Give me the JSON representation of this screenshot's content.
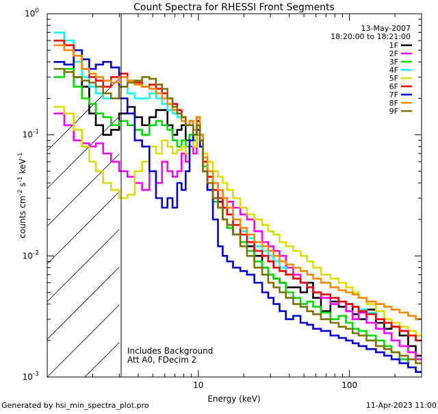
{
  "chart_data": {
    "type": "line",
    "step": true,
    "title": "Count Spectra for RHESSI Front Segments",
    "xlabel": "Energy (keV)",
    "ylabel": "counts cm-2 s-1 keV-1",
    "xscale": "log",
    "yscale": "log",
    "xlim": [
      1.0,
      300.0
    ],
    "ylim": [
      0.001,
      1.0
    ],
    "x_ticks": [
      {
        "value": 10,
        "label": "10"
      },
      {
        "value": 100,
        "label": "100"
      }
    ],
    "y_ticks": [
      {
        "value": 1.0,
        "label": "10",
        "exp": "0"
      },
      {
        "value": 0.1,
        "label": "10",
        "exp": "-1"
      },
      {
        "value": 0.01,
        "label": "10",
        "exp": "-2"
      },
      {
        "value": 0.001,
        "label": "10",
        "exp": "-3"
      }
    ],
    "hatched_region_upper_keV": 3.0,
    "date": "13-May-2007",
    "time_range": "18:20:00 to 18:21:00",
    "legend_position": "top-right",
    "annotation_lines": [
      "Includes Background",
      "Att A0, FDecim 2"
    ],
    "series": [
      {
        "name": "1F",
        "color": "#000000",
        "x": [
          1.2,
          1.4,
          1.6,
          1.8,
          2.0,
          2.2,
          2.5,
          2.8,
          3.2,
          3.6,
          4.0,
          4.5,
          5.0,
          5.5,
          6.0,
          6.5,
          7.0,
          7.5,
          8.0,
          8.5,
          9.0,
          9.5,
          10.0,
          10.5,
          11.0,
          12.0,
          13.0,
          14.0,
          15.0,
          16.0,
          18.0,
          20.0,
          22.0,
          25.0,
          28.0,
          30.0,
          33.0,
          36.0,
          40.0,
          45.0,
          50.0,
          55.0,
          60.0,
          70.0,
          80.0,
          90.0,
          100.0,
          110.0,
          120.0,
          140.0,
          160.0,
          180.0,
          200.0,
          230.0,
          260.0,
          290.0
        ],
        "y": [
          0.4,
          0.38,
          0.3,
          0.25,
          0.15,
          0.12,
          0.1,
          0.11,
          0.15,
          0.17,
          0.14,
          0.12,
          0.14,
          0.16,
          0.16,
          0.12,
          0.1,
          0.11,
          0.12,
          0.09,
          0.1,
          0.08,
          0.13,
          0.08,
          0.05,
          0.035,
          0.03,
          0.028,
          0.02,
          0.018,
          0.015,
          0.013,
          0.012,
          0.01,
          0.008,
          0.007,
          0.0065,
          0.006,
          0.0055,
          0.0055,
          0.005,
          0.006,
          0.0045,
          0.0035,
          0.0042,
          0.0038,
          0.004,
          0.0033,
          0.003,
          0.0036,
          0.0028,
          0.0025,
          0.0026,
          0.0022,
          0.0018,
          0.0015
        ]
      },
      {
        "name": "2F",
        "color": "#ff00ff",
        "x": [
          1.2,
          1.4,
          1.6,
          1.8,
          2.0,
          2.2,
          2.5,
          2.8,
          3.2,
          3.6,
          4.0,
          4.5,
          5.0,
          5.5,
          6.0,
          6.5,
          7.0,
          7.5,
          8.0,
          8.5,
          9.0,
          9.5,
          10.0,
          10.5,
          11.0,
          12.0,
          13.0,
          14.0,
          15.0,
          16.0,
          18.0,
          20.0,
          22.0,
          25.0,
          28.0,
          30.0,
          33.0,
          36.0,
          40.0,
          45.0,
          50.0,
          55.0,
          60.0,
          70.0,
          80.0,
          90.0,
          100.0,
          110.0,
          120.0,
          140.0,
          160.0,
          180.0,
          200.0,
          230.0,
          260.0,
          290.0
        ],
        "y": [
          0.15,
          0.12,
          0.09,
          0.085,
          0.08,
          0.085,
          0.07,
          0.06,
          0.05,
          0.045,
          0.04,
          0.035,
          0.05,
          0.04,
          0.06,
          0.05,
          0.045,
          0.05,
          0.07,
          0.06,
          0.08,
          0.07,
          0.1,
          0.09,
          0.05,
          0.045,
          0.04,
          0.035,
          0.03,
          0.028,
          0.025,
          0.022,
          0.02,
          0.016,
          0.013,
          0.012,
          0.011,
          0.01,
          0.008,
          0.007,
          0.006,
          0.0055,
          0.005,
          0.0045,
          0.004,
          0.0042,
          0.0035,
          0.003,
          0.0034,
          0.0028,
          0.0025,
          0.0023,
          0.002,
          0.0018,
          0.0016,
          0.0014
        ]
      },
      {
        "name": "3F",
        "color": "#00dd00",
        "x": [
          1.2,
          1.4,
          1.6,
          1.8,
          2.0,
          2.2,
          2.5,
          2.8,
          3.2,
          3.6,
          4.0,
          4.5,
          5.0,
          5.5,
          6.0,
          6.5,
          7.0,
          7.5,
          8.0,
          8.5,
          9.0,
          9.5,
          10.0,
          10.5,
          11.0,
          12.0,
          13.0,
          14.0,
          15.0,
          16.0,
          18.0,
          20.0,
          22.0,
          25.0,
          28.0,
          30.0,
          33.0,
          36.0,
          40.0,
          45.0,
          50.0,
          55.0,
          60.0,
          70.0,
          80.0,
          90.0,
          100.0,
          110.0,
          120.0,
          140.0,
          160.0,
          180.0,
          200.0,
          230.0,
          260.0,
          290.0
        ],
        "y": [
          0.3,
          0.35,
          0.25,
          0.2,
          0.18,
          0.15,
          0.14,
          0.12,
          0.13,
          0.12,
          0.11,
          0.1,
          0.12,
          0.13,
          0.12,
          0.11,
          0.09,
          0.08,
          0.09,
          0.08,
          0.1,
          0.09,
          0.1,
          0.08,
          0.055,
          0.035,
          0.028,
          0.025,
          0.02,
          0.017,
          0.015,
          0.013,
          0.011,
          0.009,
          0.008,
          0.007,
          0.0065,
          0.006,
          0.005,
          0.0045,
          0.004,
          0.0042,
          0.0038,
          0.0034,
          0.003,
          0.0032,
          0.0028,
          0.0025,
          0.0024,
          0.0022,
          0.002,
          0.0018,
          0.0016,
          0.0014,
          0.0012,
          0.0011
        ]
      },
      {
        "name": "4F",
        "color": "#00ffff",
        "x": [
          1.2,
          1.4,
          1.6,
          1.8,
          2.0,
          2.2,
          2.5,
          2.8,
          3.2,
          3.6,
          4.0,
          4.5,
          5.0,
          5.5,
          6.0,
          6.5,
          7.0,
          7.5,
          8.0,
          8.5,
          9.0,
          9.5,
          10.0,
          10.5,
          11.0,
          12.0,
          13.0,
          14.0,
          15.0,
          16.0,
          18.0,
          20.0,
          22.0,
          25.0,
          28.0,
          30.0,
          33.0,
          36.0,
          40.0,
          45.0,
          50.0,
          55.0,
          60.0,
          70.0,
          80.0,
          90.0,
          100.0,
          110.0,
          120.0,
          140.0,
          160.0,
          180.0,
          200.0,
          230.0,
          260.0,
          290.0
        ],
        "y": [
          0.7,
          0.6,
          0.4,
          0.3,
          0.25,
          0.22,
          0.2,
          0.2,
          0.25,
          0.22,
          0.2,
          0.2,
          0.22,
          0.2,
          0.18,
          0.16,
          0.15,
          0.14,
          0.13,
          0.12,
          0.12,
          0.1,
          0.12,
          0.1,
          0.06,
          0.045,
          0.035,
          0.03,
          0.025,
          0.022,
          0.018,
          0.016,
          0.014,
          0.012,
          0.011,
          0.01,
          0.009,
          0.008,
          0.007,
          0.0065,
          0.006,
          0.0055,
          0.005,
          0.0048,
          0.0045,
          0.0042,
          0.004,
          0.0038,
          0.0036,
          0.0034,
          0.003,
          0.0028,
          0.0026,
          0.0024,
          0.0022,
          0.002
        ]
      },
      {
        "name": "5F",
        "color": "#dddd00",
        "x": [
          1.2,
          1.4,
          1.6,
          1.8,
          2.0,
          2.2,
          2.5,
          2.8,
          3.2,
          3.6,
          4.0,
          4.5,
          5.0,
          5.5,
          6.0,
          6.5,
          7.0,
          7.5,
          8.0,
          8.5,
          9.0,
          9.5,
          10.0,
          10.5,
          11.0,
          12.0,
          13.0,
          14.0,
          15.0,
          16.0,
          18.0,
          20.0,
          22.0,
          25.0,
          28.0,
          30.0,
          33.0,
          36.0,
          40.0,
          45.0,
          50.0,
          55.0,
          60.0,
          70.0,
          80.0,
          90.0,
          100.0,
          110.0,
          120.0,
          140.0,
          160.0,
          180.0,
          200.0,
          230.0,
          260.0,
          290.0
        ],
        "y": [
          0.17,
          0.15,
          0.11,
          0.08,
          0.06,
          0.05,
          0.04,
          0.035,
          0.03,
          0.032,
          0.05,
          0.06,
          0.08,
          0.07,
          0.09,
          0.08,
          0.07,
          0.075,
          0.08,
          0.07,
          0.09,
          0.08,
          0.12,
          0.09,
          0.07,
          0.06,
          0.05,
          0.045,
          0.04,
          0.035,
          0.03,
          0.025,
          0.022,
          0.02,
          0.018,
          0.016,
          0.015,
          0.013,
          0.012,
          0.011,
          0.01,
          0.009,
          0.008,
          0.007,
          0.0065,
          0.006,
          0.0055,
          0.005,
          0.0045,
          0.004,
          0.0035,
          0.003,
          0.0028,
          0.0026,
          0.0024,
          0.0022
        ]
      },
      {
        "name": "6F",
        "color": "#ff0000",
        "x": [
          1.2,
          1.4,
          1.6,
          1.8,
          2.0,
          2.2,
          2.5,
          2.8,
          3.2,
          3.6,
          4.0,
          4.5,
          5.0,
          5.5,
          6.0,
          6.5,
          7.0,
          7.5,
          8.0,
          8.5,
          9.0,
          9.5,
          10.0,
          10.5,
          11.0,
          12.0,
          13.0,
          14.0,
          15.0,
          16.0,
          18.0,
          20.0,
          22.0,
          25.0,
          28.0,
          30.0,
          33.0,
          36.0,
          40.0,
          45.0,
          50.0,
          55.0,
          60.0,
          70.0,
          80.0,
          90.0,
          100.0,
          110.0,
          120.0,
          140.0,
          160.0,
          180.0,
          200.0,
          230.0,
          260.0,
          290.0
        ],
        "y": [
          0.6,
          0.55,
          0.45,
          0.35,
          0.3,
          0.28,
          0.25,
          0.3,
          0.32,
          0.28,
          0.27,
          0.25,
          0.26,
          0.24,
          0.22,
          0.2,
          0.18,
          0.16,
          0.14,
          0.12,
          0.13,
          0.11,
          0.14,
          0.1,
          0.06,
          0.045,
          0.035,
          0.03,
          0.025,
          0.022,
          0.018,
          0.015,
          0.013,
          0.011,
          0.01,
          0.009,
          0.008,
          0.0075,
          0.007,
          0.0065,
          0.006,
          0.0055,
          0.005,
          0.0048,
          0.0045,
          0.0042,
          0.004,
          0.0038,
          0.0035,
          0.0033,
          0.003,
          0.0028,
          0.0026,
          0.0024,
          0.0022,
          0.002
        ]
      },
      {
        "name": "7F",
        "color": "#0000dd",
        "x": [
          1.2,
          1.4,
          1.6,
          1.8,
          2.0,
          2.2,
          2.5,
          2.8,
          3.2,
          3.6,
          4.0,
          4.5,
          5.0,
          5.5,
          6.0,
          6.5,
          7.0,
          7.5,
          8.0,
          8.5,
          9.0,
          9.5,
          10.0,
          10.5,
          11.0,
          12.0,
          13.0,
          14.0,
          15.0,
          16.0,
          18.0,
          20.0,
          22.0,
          25.0,
          28.0,
          30.0,
          33.0,
          36.0,
          40.0,
          45.0,
          50.0,
          55.0,
          60.0,
          70.0,
          80.0,
          90.0,
          100.0,
          110.0,
          120.0,
          140.0,
          160.0,
          180.0,
          200.0,
          230.0,
          260.0,
          290.0
        ],
        "y": [
          0.4,
          0.38,
          0.5,
          0.42,
          0.35,
          0.38,
          0.4,
          0.36,
          0.2,
          0.15,
          0.09,
          0.08,
          0.05,
          0.03,
          0.025,
          0.03,
          0.025,
          0.04,
          0.035,
          0.05,
          0.09,
          0.1,
          0.11,
          0.08,
          0.05,
          0.035,
          0.02,
          0.012,
          0.01,
          0.009,
          0.008,
          0.0075,
          0.007,
          0.006,
          0.005,
          0.0045,
          0.004,
          0.0035,
          0.003,
          0.0032,
          0.0028,
          0.0027,
          0.0025,
          0.0024,
          0.0022,
          0.0021,
          0.002,
          0.0019,
          0.0018,
          0.0017,
          0.0016,
          0.0015,
          0.0014,
          0.0013,
          0.0012,
          0.0011
        ]
      },
      {
        "name": "8F",
        "color": "#ff8800",
        "x": [
          1.2,
          1.4,
          1.6,
          1.8,
          2.0,
          2.2,
          2.5,
          2.8,
          3.2,
          3.6,
          4.0,
          4.5,
          5.0,
          5.5,
          6.0,
          6.5,
          7.0,
          7.5,
          8.0,
          8.5,
          9.0,
          9.5,
          10.0,
          10.5,
          11.0,
          12.0,
          13.0,
          14.0,
          15.0,
          16.0,
          18.0,
          20.0,
          22.0,
          25.0,
          28.0,
          30.0,
          33.0,
          36.0,
          40.0,
          45.0,
          50.0,
          55.0,
          60.0,
          70.0,
          80.0,
          90.0,
          100.0,
          110.0,
          120.0,
          140.0,
          160.0,
          180.0,
          200.0,
          230.0,
          260.0,
          290.0
        ],
        "y": [
          0.55,
          0.5,
          0.45,
          0.35,
          0.32,
          0.3,
          0.28,
          0.27,
          0.3,
          0.28,
          0.26,
          0.25,
          0.24,
          0.22,
          0.2,
          0.18,
          0.16,
          0.15,
          0.13,
          0.12,
          0.13,
          0.11,
          0.14,
          0.1,
          0.065,
          0.05,
          0.04,
          0.035,
          0.03,
          0.025,
          0.02,
          0.017,
          0.015,
          0.013,
          0.012,
          0.011,
          0.01,
          0.009,
          0.0085,
          0.008,
          0.0075,
          0.007,
          0.0065,
          0.006,
          0.0055,
          0.0052,
          0.005,
          0.0048,
          0.0045,
          0.0042,
          0.004,
          0.0038,
          0.0036,
          0.0034,
          0.0032,
          0.003
        ]
      },
      {
        "name": "9F",
        "color": "#807000",
        "x": [
          1.2,
          1.4,
          1.6,
          1.8,
          2.0,
          2.2,
          2.5,
          2.8,
          3.2,
          3.6,
          4.0,
          4.5,
          5.0,
          5.5,
          6.0,
          6.5,
          7.0,
          7.5,
          8.0,
          8.5,
          9.0,
          9.5,
          10.0,
          10.5,
          11.0,
          12.0,
          13.0,
          14.0,
          15.0,
          16.0,
          18.0,
          20.0,
          22.0,
          25.0,
          28.0,
          30.0,
          33.0,
          36.0,
          40.0,
          45.0,
          50.0,
          55.0,
          60.0,
          70.0,
          80.0,
          90.0,
          100.0,
          110.0,
          120.0,
          140.0,
          160.0,
          180.0,
          200.0,
          230.0,
          260.0,
          290.0
        ],
        "y": [
          0.35,
          0.33,
          0.3,
          0.28,
          0.27,
          0.25,
          0.22,
          0.2,
          0.25,
          0.27,
          0.28,
          0.3,
          0.29,
          0.26,
          0.24,
          0.2,
          0.17,
          0.15,
          0.14,
          0.12,
          0.12,
          0.1,
          0.12,
          0.09,
          0.05,
          0.04,
          0.03,
          0.025,
          0.02,
          0.018,
          0.015,
          0.012,
          0.01,
          0.008,
          0.007,
          0.006,
          0.0055,
          0.005,
          0.0045,
          0.004,
          0.0038,
          0.0035,
          0.0033,
          0.003,
          0.0028,
          0.0026,
          0.0025,
          0.0023,
          0.0022,
          0.002,
          0.0018,
          0.0017,
          0.0016,
          0.0015,
          0.0014,
          0.0013
        ]
      }
    ]
  },
  "footer": {
    "generated_by": "Generated by hsi_min_spectra_plot.pro",
    "timestamp": "11-Apr-2023 11:00"
  }
}
